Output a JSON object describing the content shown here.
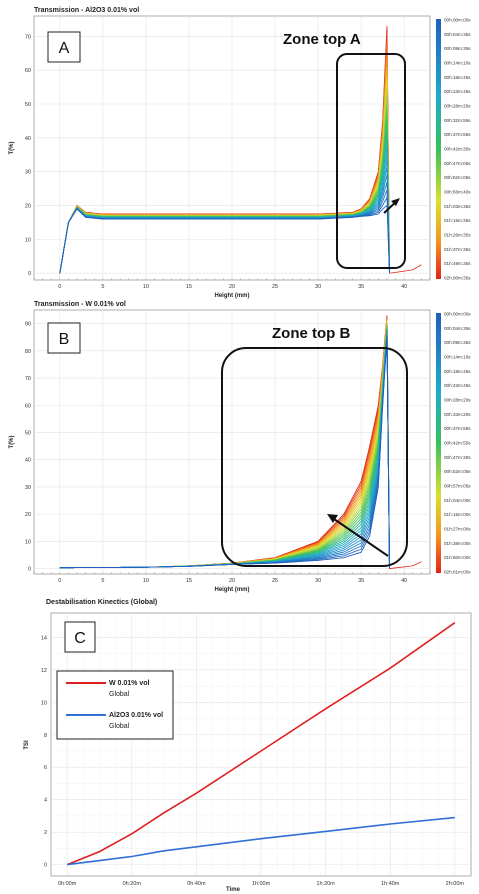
{
  "chart_data": [
    {
      "type": "line",
      "panel_label": "A",
      "title": "Transmission - Al2O3 0.01% vol",
      "xlabel": "Height (mm)",
      "ylabel": "T(%)",
      "xlim": [
        -3,
        43
      ],
      "ylim": [
        -2,
        76
      ],
      "x_ticks": [
        0,
        5,
        10,
        15,
        20,
        25,
        30,
        35,
        40
      ],
      "y_ticks": [
        0,
        10,
        20,
        30,
        40,
        50,
        60,
        70
      ],
      "annotation": "Zone top A",
      "colorbar_labels": [
        "00h:00m:00s",
        "00h:04m:35s",
        "00h:09m:35s",
        "00h:14m:10s",
        "00h:18m:45s",
        "00h:23m:45s",
        "00h:28m:20s",
        "00h:32m:55s",
        "00h:37m:55s",
        "00h:42m:30s",
        "00h:47m:05s",
        "00h:52m:05s",
        "00h:56m:40s",
        "01h:03m:35s",
        "01h:15m:35s",
        "01h:26m:35s",
        "01h:37m:35s",
        "01h:49m:35s",
        "02h:00m:35s"
      ],
      "series_profile": {
        "x": [
          0,
          1,
          2,
          3,
          5,
          10,
          20,
          30,
          34,
          35,
          36,
          37,
          37.5,
          38
        ],
        "first": [
          0,
          15,
          20,
          18,
          17.5,
          17.5,
          17.5,
          17.5,
          18,
          19,
          22,
          30,
          45,
          73
        ],
        "last": [
          0,
          15,
          19,
          16.5,
          16,
          16,
          16,
          16,
          16.5,
          16.8,
          17,
          17.5,
          19,
          20
        ]
      }
    },
    {
      "type": "line",
      "panel_label": "B",
      "title": "Transmission - W 0.01% vol",
      "xlabel": "Height (mm)",
      "ylabel": "T(%)",
      "xlim": [
        -3,
        43
      ],
      "ylim": [
        -2,
        95
      ],
      "x_ticks": [
        0,
        5,
        10,
        15,
        20,
        25,
        30,
        35,
        40
      ],
      "y_ticks": [
        0,
        10,
        20,
        30,
        40,
        50,
        60,
        70,
        80,
        90
      ],
      "annotation": "Zone top B",
      "colorbar_labels": [
        "00h:00m:00s",
        "00h:04m:35s",
        "00h:09m:35s",
        "00h:14m:10s",
        "00h:18m:45s",
        "00h:23m:45s",
        "00h:28m:20s",
        "00h:33m:20s",
        "00h:37m:55s",
        "00h:42m:55s",
        "00h:47m:30s",
        "00h:52m:05s",
        "00h:57m:05s",
        "01h:04m:00s",
        "01h:15m:00s",
        "01h:27m:00s",
        "01h:38m:00s",
        "01h:50m:00s",
        "02h:01m:00s"
      ],
      "series_profile": {
        "x": [
          0,
          10,
          15,
          20,
          25,
          30,
          33,
          35,
          36,
          37,
          37.5,
          38
        ],
        "first": [
          0.3,
          0.5,
          1,
          2,
          4,
          10,
          20,
          32,
          45,
          60,
          75,
          93
        ],
        "last": [
          0.3,
          0.5,
          0.8,
          1.5,
          2,
          3,
          4,
          6,
          12,
          30,
          60,
          85
        ]
      }
    },
    {
      "type": "line",
      "panel_label": "C",
      "title": "Destabilisation Kinectics (Global)",
      "xlabel": "Time",
      "ylabel": "TSI",
      "xlim": [
        -5,
        125
      ],
      "ylim": [
        -0.7,
        15.5
      ],
      "x_ticks": [
        0,
        20,
        40,
        60,
        80,
        100,
        120
      ],
      "x_tick_labels": [
        "0h:00m",
        "0h:20m",
        "0h:40m",
        "1h:00m",
        "1h:20m",
        "1h:40m",
        "2h:00m"
      ],
      "y_ticks": [
        0,
        2,
        4,
        6,
        8,
        10,
        12,
        14
      ],
      "series": [
        {
          "name": "W 0.01% vol",
          "subname": "Global",
          "color": "#e02020",
          "x": [
            0,
            10,
            20,
            30,
            40,
            60,
            80,
            100,
            120
          ],
          "y": [
            0,
            0.8,
            1.9,
            3.2,
            4.4,
            7.0,
            9.6,
            12.1,
            14.9
          ]
        },
        {
          "name": "Al2O3 0.01% vol",
          "subname": "Global",
          "color": "#2f6fd6",
          "x": [
            0,
            10,
            20,
            30,
            40,
            60,
            80,
            100,
            120
          ],
          "y": [
            0,
            0.25,
            0.5,
            0.85,
            1.1,
            1.6,
            2.05,
            2.5,
            2.9
          ]
        }
      ]
    }
  ]
}
